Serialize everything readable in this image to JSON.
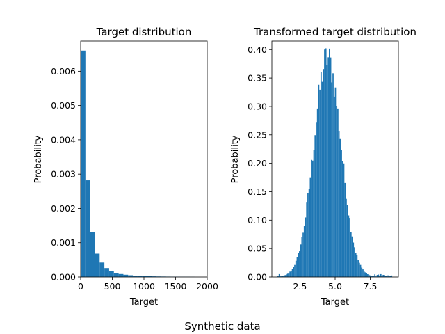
{
  "figure": {
    "suptitle": "Synthetic data"
  },
  "colors": {
    "bar": "#1f77b4",
    "axis": "#000000",
    "background": "#ffffff"
  },
  "chart_data": [
    {
      "type": "bar",
      "title": "Target distribution",
      "xlabel": "Target",
      "ylabel": "Probability",
      "xlim": [
        0,
        2000
      ],
      "ylim": [
        0,
        0.00688
      ],
      "xticks": [
        0,
        500,
        1000,
        1500,
        2000
      ],
      "xtick_labels": [
        "0",
        "500",
        "1000",
        "1500",
        "2000"
      ],
      "yticks": [
        0,
        0.001,
        0.002,
        0.003,
        0.004,
        0.005,
        0.006
      ],
      "ytick_labels": [
        "0.000",
        "0.001",
        "0.002",
        "0.003",
        "0.004",
        "0.005",
        "0.006"
      ],
      "bin_edges": [
        0,
        75,
        150,
        225,
        300,
        375,
        450,
        525,
        600,
        675,
        750,
        825,
        900,
        975,
        1050,
        1125,
        1200,
        1275,
        1350,
        1425,
        1500,
        1575,
        1650,
        1725,
        1800
      ],
      "values": [
        0.0066,
        0.00282,
        0.0013,
        0.00068,
        0.00042,
        0.00026,
        0.00017,
        0.000115,
        8.5e-05,
        6.5e-05,
        5e-05,
        4e-05,
        3.3e-05,
        2.7e-05,
        2.2e-05,
        1.8e-05,
        1.5e-05,
        1.3e-05,
        1.1e-05,
        9e-06,
        8e-06,
        7e-06,
        6e-06,
        4e-06
      ],
      "grid": false
    },
    {
      "type": "bar",
      "title": "Transformed target distribution",
      "xlabel": "Target",
      "ylabel": "Probability",
      "xlim": [
        0.5,
        9.5
      ],
      "ylim": [
        0,
        0.415
      ],
      "xticks": [
        2.5,
        5.0,
        7.5
      ],
      "xtick_labels": [
        "2.5",
        "5.0",
        "7.5"
      ],
      "yticks": [
        0,
        0.05,
        0.1,
        0.15,
        0.2,
        0.25,
        0.3,
        0.35,
        0.4
      ],
      "ytick_labels": [
        "0.00",
        "0.05",
        "0.10",
        "0.15",
        "0.20",
        "0.25",
        "0.30",
        "0.35",
        "0.40"
      ],
      "mean": 4.45,
      "std": 0.97,
      "x_start": 0.9,
      "x_end": 9.05,
      "bin_width": 0.085,
      "peak_density": 0.385,
      "grid": false
    }
  ]
}
